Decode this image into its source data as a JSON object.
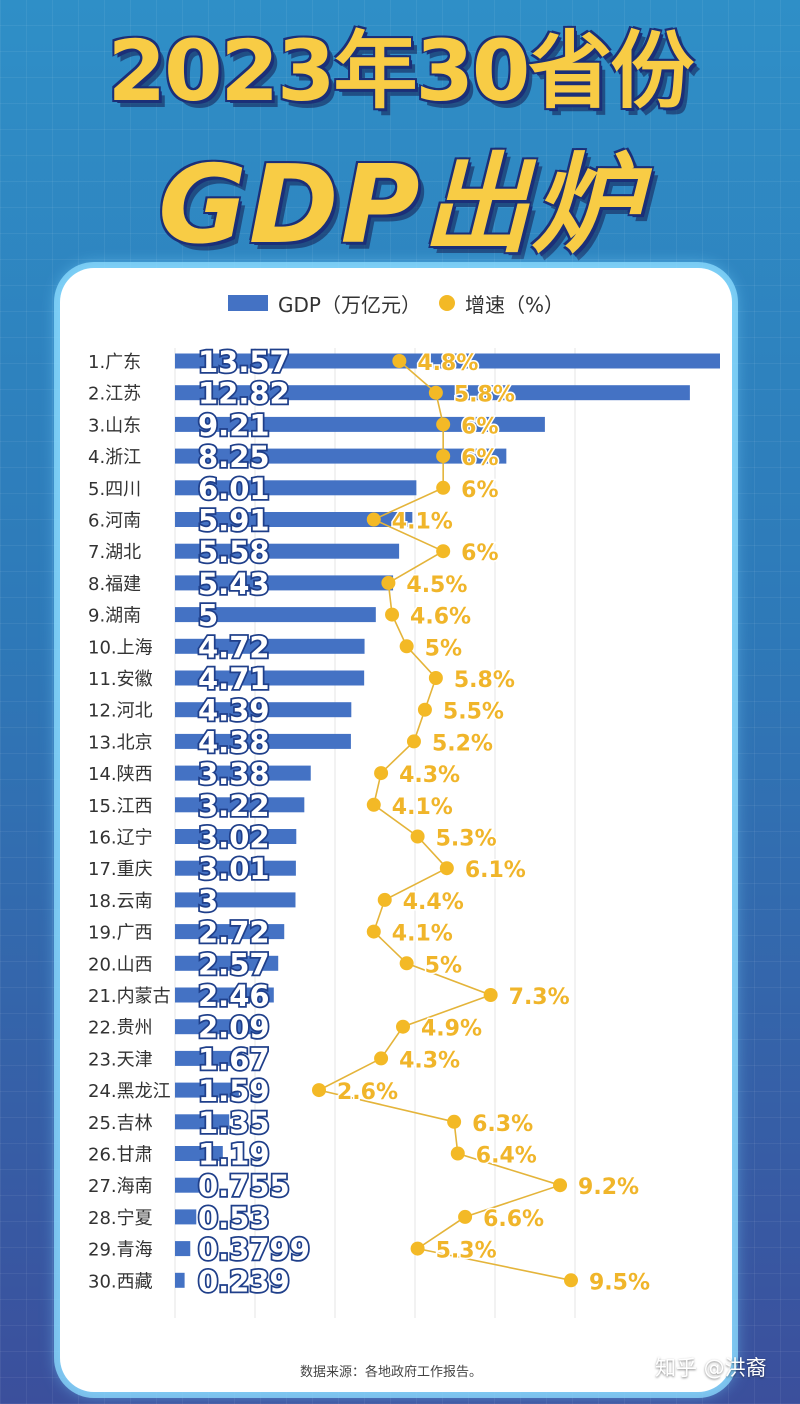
{
  "title_line1": "2023年30省份",
  "title_line2": "GDP出炉",
  "source": "数据来源：各地政府工作报告。",
  "watermark": "知乎 @洪裔",
  "colors": {
    "bar": "#4472c4",
    "dot": "#f3b926",
    "growth_label": "#f0b52a"
  },
  "chart_data": {
    "type": "bar",
    "categories": [
      "1.广东",
      "2.江苏",
      "3.山东",
      "4.浙江",
      "5.四川",
      "6.河南",
      "7.湖北",
      "8.福建",
      "9.湖南",
      "10.上海",
      "11.安徽",
      "12.河北",
      "13.北京",
      "14.陕西",
      "15.江西",
      "16.辽宁",
      "17.重庆",
      "18.云南",
      "19.广西",
      "20.山西",
      "21.内蒙古",
      "22.贵州",
      "23.天津",
      "24.黑龙江",
      "25.吉林",
      "26.甘肃",
      "27.海南",
      "28.宁夏",
      "29.青海",
      "30.西藏"
    ],
    "series": [
      {
        "name": "GDP（万亿元）",
        "type": "bar",
        "values": [
          13.57,
          12.82,
          9.21,
          8.25,
          6.01,
          5.91,
          5.58,
          5.43,
          5,
          4.72,
          4.71,
          4.39,
          4.38,
          3.38,
          3.22,
          3.02,
          3.01,
          3,
          2.72,
          2.57,
          2.46,
          2.09,
          1.67,
          1.59,
          1.35,
          1.19,
          0.755,
          0.53,
          0.3799,
          0.239
        ],
        "labels": [
          "13.57",
          "12.82",
          "9.21",
          "8.25",
          "6.01",
          "5.91",
          "5.58",
          "5.43",
          "5",
          "4.72",
          "4.71",
          "4.39",
          "4.38",
          "3.38",
          "3.22",
          "3.02",
          "3.01",
          "3",
          "2.72",
          "2.57",
          "2.46",
          "2.09",
          "1.67",
          "1.59",
          "1.35",
          "1.19",
          "0.755",
          "0.53",
          "0.3799",
          "0.239"
        ]
      },
      {
        "name": "增速（%）",
        "type": "line",
        "values": [
          4.8,
          5.8,
          6,
          6,
          6,
          4.1,
          6,
          4.5,
          4.6,
          5,
          5.8,
          5.5,
          5.2,
          4.3,
          4.1,
          5.3,
          6.1,
          4.4,
          4.1,
          5,
          7.3,
          4.9,
          4.3,
          2.6,
          6.3,
          6.4,
          9.2,
          6.6,
          5.3,
          9.5
        ],
        "labels": [
          "4.8%",
          "5.8%",
          "6%",
          "6%",
          "6%",
          "4.1%",
          "6%",
          "4.5%",
          "4.6%",
          "5%",
          "5.8%",
          "5.5%",
          "5.2%",
          "4.3%",
          "4.1%",
          "5.3%",
          "6.1%",
          "4.4%",
          "4.1%",
          "5%",
          "7.3%",
          "4.9%",
          "4.3%",
          "2.6%",
          "6.3%",
          "6.4%",
          "9.2%",
          "6.6%",
          "5.3%",
          "9.5%"
        ]
      }
    ],
    "xlim_gdp": [
      0,
      13.57
    ],
    "xlim_growth": [
      2.6,
      9.5
    ],
    "legend_position": "top",
    "grid": true
  }
}
